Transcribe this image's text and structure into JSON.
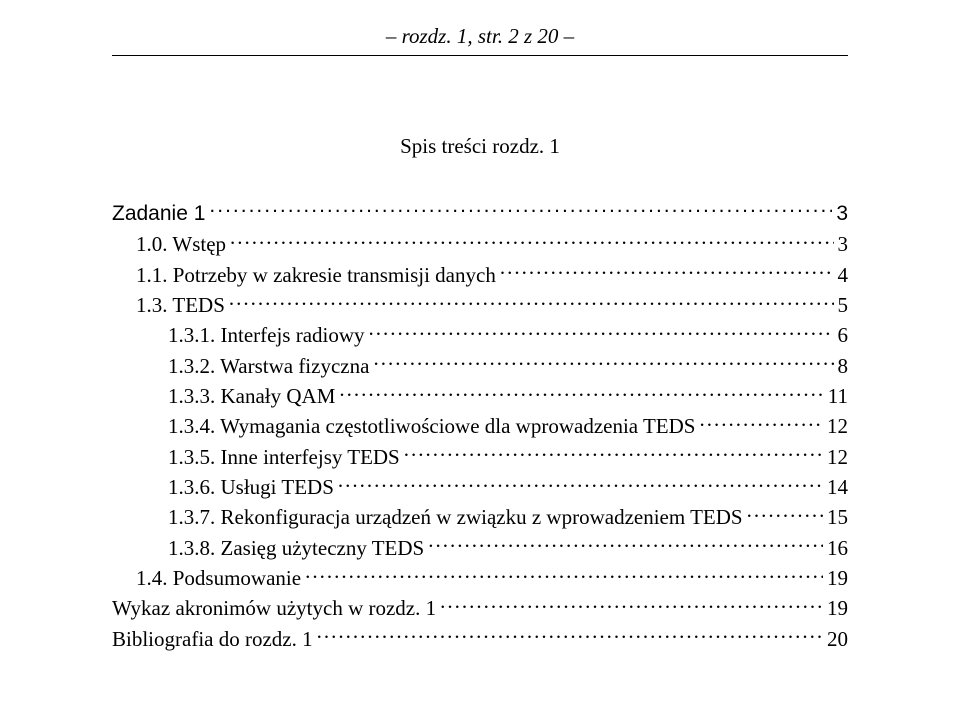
{
  "header": {
    "text": "– rozdz. 1,  str. 2 z 20 –"
  },
  "title": "Spis treści rozdz. 1",
  "toc": [
    {
      "label": "Zadanie 1",
      "page": "3",
      "indent": 0,
      "arial": true
    },
    {
      "label": "1.0.  Wstęp",
      "page": "3",
      "indent": 1,
      "arial": false
    },
    {
      "label": "1.1.  Potrzeby w zakresie transmisji danych",
      "page": "4",
      "indent": 1,
      "arial": false
    },
    {
      "label": "1.3.  TEDS",
      "page": "5",
      "indent": 1,
      "arial": false
    },
    {
      "label": "1.3.1.  Interfejs radiowy",
      "page": "6",
      "indent": 2,
      "arial": false
    },
    {
      "label": "1.3.2.  Warstwa fizyczna",
      "page": "8",
      "indent": 2,
      "arial": false
    },
    {
      "label": "1.3.3.  Kanały QAM",
      "page": "11",
      "indent": 2,
      "arial": false
    },
    {
      "label": "1.3.4.  Wymagania częstotliwościowe dla wprowadzenia TEDS",
      "page": "12",
      "indent": 2,
      "arial": false
    },
    {
      "label": "1.3.5.  Inne interfejsy TEDS",
      "page": "12",
      "indent": 2,
      "arial": false
    },
    {
      "label": "1.3.6.  Usługi TEDS",
      "page": "14",
      "indent": 2,
      "arial": false
    },
    {
      "label": "1.3.7.  Rekonfiguracja urządzeń w związku z wprowadzeniem TEDS",
      "page": "15",
      "indent": 2,
      "arial": false
    },
    {
      "label": "1.3.8.  Zasięg użyteczny TEDS",
      "page": "16",
      "indent": 2,
      "arial": false
    },
    {
      "label": "1.4.  Podsumowanie",
      "page": "19",
      "indent": 1,
      "arial": false
    },
    {
      "label": "Wykaz akronimów użytych w rozdz. 1",
      "page": "19",
      "indent": 0,
      "arial": false
    },
    {
      "label": "Bibliografia do rozdz. 1",
      "page": "20",
      "indent": 0,
      "arial": false
    }
  ]
}
